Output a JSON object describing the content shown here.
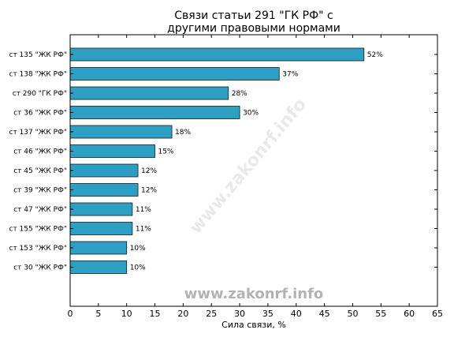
{
  "chart_data": {
    "type": "bar",
    "orientation": "horizontal",
    "title_lines": [
      "Связи статьи 291 \"ГК РФ\" с",
      "другими правовыми нормами"
    ],
    "xlabel": "Сила связи, %",
    "xlim": [
      0,
      65
    ],
    "xticks": [
      "0",
      "5",
      "10",
      "15",
      "20",
      "25",
      "30",
      "35",
      "40",
      "45",
      "50",
      "55",
      "60",
      "65"
    ],
    "categories": [
      "ст 135 \"ЖК РФ\"",
      "ст 138 \"ЖК РФ\"",
      "ст 290 \"ГК РФ\"",
      "ст 36 \"ЖК РФ\"",
      "ст 137 \"ЖК РФ\"",
      "ст 46 \"ЖК РФ\"",
      "ст 45 \"ЖК РФ\"",
      "ст 39 \"ЖК РФ\"",
      "ст 47 \"ЖК РФ\"",
      "ст 155 \"ЖК РФ\"",
      "ст 153 \"ЖК РФ\"",
      "ст 30 \"ЖК РФ\""
    ],
    "values": [
      52,
      37,
      28,
      30,
      18,
      15,
      12,
      12,
      11,
      11,
      10,
      10
    ],
    "labels": [
      "52%",
      "37%",
      "28%",
      "30%",
      "18%",
      "15%",
      "12%",
      "12%",
      "11%",
      "11%",
      "10%",
      "10%"
    ],
    "bar_color": "#2b9fc4",
    "watermark": "www.zakonrf.info",
    "grid": false
  }
}
